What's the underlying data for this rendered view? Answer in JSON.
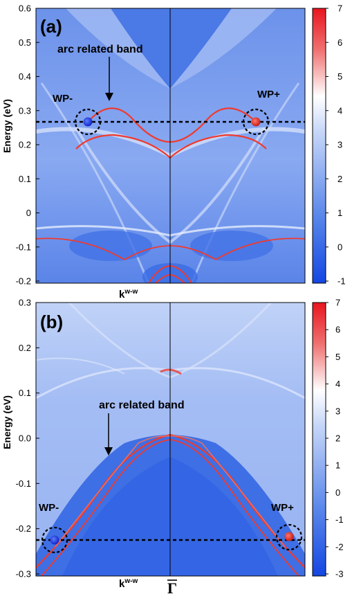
{
  "colors": {
    "background_blue": "#5f86e8",
    "light_blue": "#b8cdf8",
    "band_red": "#f03a2e",
    "wp_minus": "#1f3fe0",
    "wp_plus": "#e8302a"
  },
  "chart_data": [
    {
      "type": "heatmap",
      "panel_label": "(a)",
      "ylabel": "Energy (eV)",
      "xlabel": "k",
      "xlabel_sup": "w-w",
      "ylim": [
        -0.2,
        0.6
      ],
      "yticks": [
        "0.6",
        "0.5",
        "0.4",
        "0.3",
        "0.2",
        "0.1",
        "0",
        "-0.1",
        "-0.2"
      ],
      "colorbar_range": [
        -1,
        7
      ],
      "colorbar_ticks": [
        "7",
        "6",
        "5",
        "4",
        "3",
        "2",
        "1",
        "0",
        "-1"
      ],
      "annotation": "arc related band",
      "weyl_points": [
        {
          "label": "WP-",
          "energy": 0.27,
          "chirality": "minus"
        },
        {
          "label": "WP+",
          "energy": 0.27,
          "chirality": "plus"
        }
      ],
      "dashed_line_energy": 0.27
    },
    {
      "type": "heatmap",
      "panel_label": "(b)",
      "ylabel": "Energy (eV)",
      "xlabel": "k",
      "xlabel_sup": "w-w",
      "ylim": [
        -0.3,
        0.3
      ],
      "yticks": [
        "0.3",
        "0.2",
        "0.1",
        "0.0",
        "-0.1",
        "-0.2",
        "-0.3"
      ],
      "colorbar_range": [
        -3,
        7
      ],
      "colorbar_ticks": [
        "7",
        "6",
        "5",
        "4",
        "3",
        "2",
        "1",
        "0",
        "-1",
        "-2",
        "-3"
      ],
      "annotation": "arc related band",
      "weyl_points": [
        {
          "label": "WP-",
          "energy": -0.22,
          "chirality": "minus"
        },
        {
          "label": "WP+",
          "energy": -0.22,
          "chirality": "plus"
        }
      ],
      "dashed_line_energy": -0.22
    }
  ],
  "gamma_label": "Γ"
}
